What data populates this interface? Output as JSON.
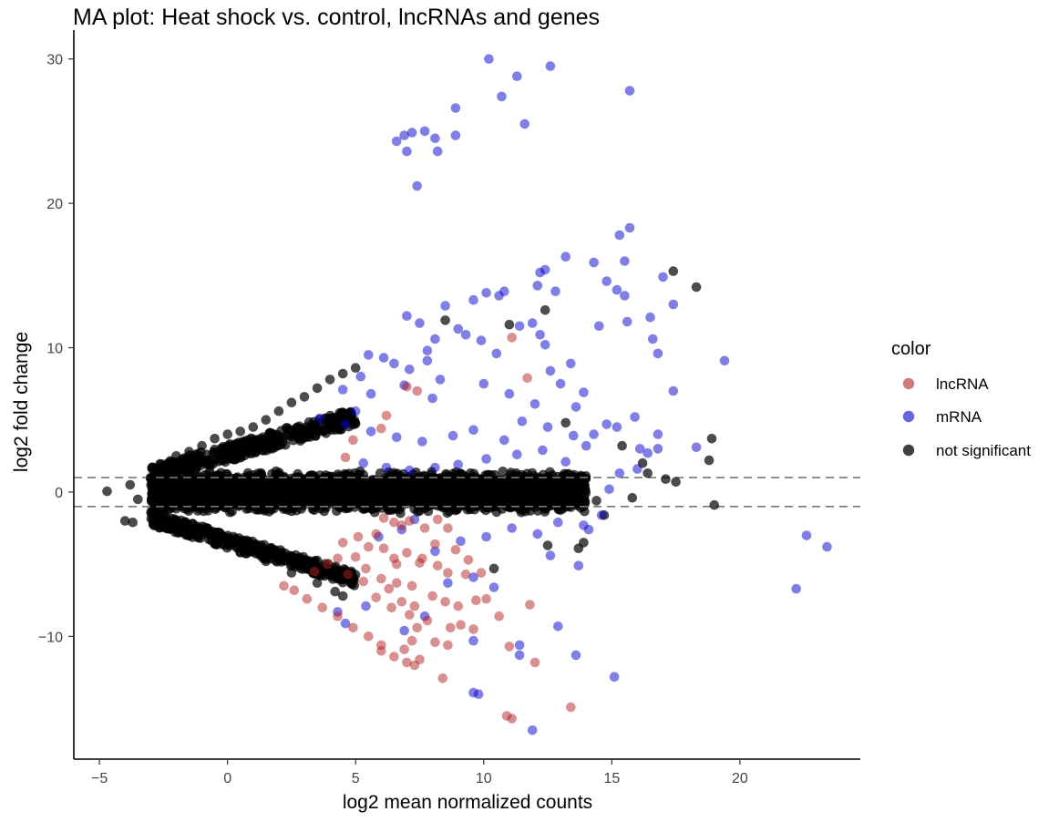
{
  "chart_data": {
    "type": "scatter",
    "title": "MA plot: Heat shock vs. control, lncRNAs and genes",
    "xlabel": "log2 mean normalized counts",
    "ylabel": "log2 fold change",
    "xlim": [
      -6,
      24.7
    ],
    "ylim": [
      -18.5,
      32
    ],
    "xticks": [
      -5,
      0,
      5,
      10,
      15,
      20
    ],
    "yticks": [
      -10,
      0,
      10,
      20,
      30
    ],
    "xtick_labels": [
      "−5",
      "0",
      "5",
      "10",
      "15",
      "20"
    ],
    "ytick_labels": [
      "−10",
      "0",
      "10",
      "20",
      "30"
    ],
    "grid": false,
    "threshold_lines": [
      1,
      -1
    ],
    "legend": {
      "title": "color",
      "position": "right",
      "entries": [
        {
          "label": "lncRNA",
          "color": "#b22222"
        },
        {
          "label": "mRNA",
          "color": "#0000cd"
        },
        {
          "label": "not significant",
          "color": "#000000"
        }
      ]
    },
    "series": [
      {
        "name": "not significant",
        "color": "#000000",
        "points": [
          [
            -4.7,
            0.05
          ],
          [
            -4.0,
            -2.0
          ],
          [
            -3.8,
            0.5
          ],
          [
            -3.7,
            -2.1
          ],
          [
            -3.5,
            -0.5
          ],
          [
            -3.0,
            1.0
          ],
          [
            -2.8,
            1.5
          ],
          [
            -2.5,
            1.8
          ],
          [
            -2.2,
            2.1
          ],
          [
            -2.0,
            2.5
          ],
          [
            -1.5,
            2.8
          ],
          [
            -1.0,
            3.2
          ],
          [
            -0.5,
            3.7
          ],
          [
            0.0,
            4.0
          ],
          [
            0.5,
            4.2
          ],
          [
            1.0,
            4.5
          ],
          [
            1.5,
            5.0
          ],
          [
            2.0,
            5.6
          ],
          [
            2.5,
            6.2
          ],
          [
            3.0,
            6.6
          ],
          [
            3.5,
            7.2
          ],
          [
            4.0,
            7.8
          ],
          [
            4.5,
            8.2
          ],
          [
            5.0,
            8.6
          ],
          [
            -2.5,
            -2.4
          ],
          [
            -1.5,
            -3.0
          ],
          [
            -0.5,
            -3.6
          ],
          [
            0.5,
            -4.2
          ],
          [
            1.5,
            -4.8
          ],
          [
            2.5,
            -5.6
          ],
          [
            3.5,
            -6.3
          ],
          [
            4.5,
            -7.2
          ],
          [
            4.2,
            -6.9
          ],
          [
            11.0,
            11.6
          ],
          [
            12.4,
            12.6
          ],
          [
            8.5,
            11.9
          ],
          [
            17.4,
            15.3
          ],
          [
            18.3,
            14.2
          ],
          [
            16.2,
            2.0
          ],
          [
            16.4,
            1.3
          ],
          [
            17.1,
            0.9
          ],
          [
            17.5,
            0.7
          ],
          [
            18.8,
            2.2
          ],
          [
            18.9,
            3.7
          ],
          [
            19.0,
            -0.9
          ],
          [
            14.7,
            -1.6
          ],
          [
            14.4,
            -0.6
          ],
          [
            15.4,
            3.2
          ],
          [
            13.7,
            -3.9
          ],
          [
            13.9,
            -3.5
          ],
          [
            12.5,
            -3.7
          ],
          [
            10.4,
            -5.3
          ],
          [
            13.2,
            4.8
          ],
          [
            15.8,
            -0.4
          ]
        ]
      },
      {
        "name": "mRNA",
        "color": "#0000cd",
        "points": [
          [
            6.6,
            24.3
          ],
          [
            6.9,
            24.7
          ],
          [
            7.2,
            24.9
          ],
          [
            7.0,
            23.6
          ],
          [
            7.4,
            21.2
          ],
          [
            7.7,
            25.0
          ],
          [
            8.1,
            24.5
          ],
          [
            8.2,
            23.6
          ],
          [
            8.9,
            24.7
          ],
          [
            8.9,
            26.6
          ],
          [
            10.2,
            30.0
          ],
          [
            10.7,
            27.4
          ],
          [
            11.3,
            28.8
          ],
          [
            11.6,
            25.5
          ],
          [
            12.6,
            29.5
          ],
          [
            15.7,
            27.8
          ],
          [
            15.3,
            17.8
          ],
          [
            15.7,
            18.3
          ],
          [
            15.5,
            16.0
          ],
          [
            14.3,
            15.9
          ],
          [
            12.2,
            15.2
          ],
          [
            12.4,
            15.4
          ],
          [
            13.2,
            16.3
          ],
          [
            14.8,
            14.6
          ],
          [
            15.2,
            14.0
          ],
          [
            15.5,
            13.6
          ],
          [
            16.5,
            12.1
          ],
          [
            17.0,
            14.9
          ],
          [
            17.4,
            13.0
          ],
          [
            16.6,
            10.6
          ],
          [
            16.8,
            9.6
          ],
          [
            15.6,
            11.8
          ],
          [
            14.5,
            11.5
          ],
          [
            17.4,
            7.0
          ],
          [
            19.4,
            9.1
          ],
          [
            18.3,
            3.1
          ],
          [
            12.1,
            14.3
          ],
          [
            12.8,
            13.9
          ],
          [
            10.8,
            13.9
          ],
          [
            10.1,
            13.8
          ],
          [
            9.6,
            13.3
          ],
          [
            10.6,
            13.6
          ],
          [
            11.4,
            11.5
          ],
          [
            11.9,
            11.7
          ],
          [
            12.2,
            10.9
          ],
          [
            12.4,
            10.2
          ],
          [
            12.6,
            8.4
          ],
          [
            13.0,
            7.5
          ],
          [
            13.4,
            8.9
          ],
          [
            13.6,
            5.9
          ],
          [
            13.9,
            6.9
          ],
          [
            14.3,
            4.0
          ],
          [
            14.8,
            4.7
          ],
          [
            15.2,
            4.5
          ],
          [
            16.1,
            3.0
          ],
          [
            16.4,
            2.7
          ],
          [
            15.9,
            5.2
          ],
          [
            16.8,
            4.0
          ],
          [
            16.8,
            3.0
          ],
          [
            22.6,
            -3.0
          ],
          [
            23.4,
            -3.8
          ],
          [
            22.2,
            -6.7
          ],
          [
            15.1,
            -12.8
          ],
          [
            13.6,
            -11.3
          ],
          [
            11.9,
            -16.5
          ],
          [
            9.8,
            -14.0
          ],
          [
            9.6,
            -13.9
          ],
          [
            11.4,
            -10.6
          ],
          [
            11.4,
            -11.3
          ],
          [
            12.9,
            -9.3
          ],
          [
            10.4,
            -6.6
          ],
          [
            9.6,
            -10.3
          ],
          [
            13.7,
            -5.1
          ],
          [
            7.0,
            12.2
          ],
          [
            7.5,
            11.7
          ],
          [
            8.5,
            12.9
          ],
          [
            9.0,
            11.3
          ],
          [
            9.3,
            10.9
          ],
          [
            7.8,
            9.8
          ],
          [
            6.5,
            8.9
          ],
          [
            8.1,
            10.6
          ],
          [
            9.9,
            10.5
          ],
          [
            5.5,
            9.5
          ],
          [
            6.1,
            9.3
          ],
          [
            7.1,
            8.5
          ],
          [
            8.3,
            7.8
          ],
          [
            5.6,
            6.8
          ],
          [
            5.2,
            8.0
          ],
          [
            7.8,
            9.1
          ],
          [
            4.5,
            7.1
          ],
          [
            6.9,
            7.4
          ],
          [
            10.5,
            9.6
          ],
          [
            5.0,
            5.6
          ],
          [
            8.0,
            6.5
          ],
          [
            10.0,
            7.5
          ],
          [
            11.0,
            6.8
          ],
          [
            12.0,
            6.1
          ],
          [
            11.5,
            4.9
          ],
          [
            12.5,
            4.5
          ],
          [
            13.5,
            3.9
          ],
          [
            14.0,
            3.2
          ],
          [
            10.8,
            3.6
          ],
          [
            9.6,
            4.3
          ],
          [
            8.8,
            3.9
          ],
          [
            7.6,
            3.5
          ],
          [
            6.6,
            3.8
          ],
          [
            5.6,
            4.2
          ],
          [
            4.6,
            4.7
          ],
          [
            3.6,
            5.1
          ],
          [
            13.2,
            2.1
          ],
          [
            12.3,
            2.9
          ],
          [
            11.3,
            2.6
          ],
          [
            10.1,
            2.3
          ],
          [
            9.0,
            1.9
          ],
          [
            8.1,
            1.7
          ],
          [
            7.1,
            1.5
          ],
          [
            6.2,
            1.7
          ],
          [
            5.3,
            2.0
          ],
          [
            14.6,
            -1.6
          ],
          [
            13.9,
            -2.3
          ],
          [
            12.9,
            -2.1
          ],
          [
            12.1,
            -2.9
          ],
          [
            11.1,
            -2.5
          ],
          [
            10.1,
            -3.1
          ],
          [
            9.1,
            -3.4
          ],
          [
            8.1,
            -4.1
          ],
          [
            9.6,
            -5.9
          ],
          [
            8.6,
            -6.3
          ],
          [
            7.7,
            -8.6
          ],
          [
            6.9,
            -9.6
          ],
          [
            5.4,
            -7.9
          ],
          [
            4.6,
            -9.1
          ],
          [
            4.3,
            -8.3
          ],
          [
            5.9,
            -3.1
          ],
          [
            6.8,
            -2.6
          ],
          [
            7.3,
            -1.9
          ],
          [
            12.6,
            -4.4
          ],
          [
            14.1,
            -2.6
          ],
          [
            14.9,
            0.2
          ],
          [
            15.3,
            1.3
          ],
          [
            16.0,
            1.6
          ]
        ]
      },
      {
        "name": "lncRNA",
        "color": "#b22222",
        "points": [
          [
            11.1,
            10.7
          ],
          [
            11.7,
            7.9
          ],
          [
            7.0,
            7.3
          ],
          [
            7.4,
            7.0
          ],
          [
            6.0,
            4.4
          ],
          [
            4.9,
            3.6
          ],
          [
            4.6,
            2.4
          ],
          [
            6.2,
            5.3
          ],
          [
            6.5,
            -2.1
          ],
          [
            6.1,
            -1.8
          ],
          [
            6.8,
            -2.3
          ],
          [
            7.1,
            -2.0
          ],
          [
            8.2,
            -1.9
          ],
          [
            7.7,
            -2.5
          ],
          [
            8.6,
            -2.5
          ],
          [
            4.5,
            -3.5
          ],
          [
            5.1,
            -3.1
          ],
          [
            5.5,
            -3.8
          ],
          [
            5.0,
            -4.5
          ],
          [
            6.1,
            -3.9
          ],
          [
            6.5,
            -4.6
          ],
          [
            7.0,
            -4.2
          ],
          [
            7.5,
            -4.9
          ],
          [
            8.2,
            -5.1
          ],
          [
            8.6,
            -5.6
          ],
          [
            9.3,
            -5.7
          ],
          [
            9.9,
            -5.6
          ],
          [
            5.4,
            -5.3
          ],
          [
            6.0,
            -6.0
          ],
          [
            6.6,
            -6.3
          ],
          [
            7.2,
            -6.5
          ],
          [
            8.0,
            -7.2
          ],
          [
            8.5,
            -7.6
          ],
          [
            9.0,
            -7.9
          ],
          [
            9.7,
            -7.5
          ],
          [
            10.1,
            -7.4
          ],
          [
            5.8,
            -7.3
          ],
          [
            6.4,
            -8.0
          ],
          [
            7.1,
            -8.5
          ],
          [
            7.4,
            -9.4
          ],
          [
            7.8,
            -8.9
          ],
          [
            8.7,
            -9.4
          ],
          [
            9.1,
            -9.2
          ],
          [
            9.6,
            -9.5
          ],
          [
            7.2,
            -10.3
          ],
          [
            6.9,
            -10.9
          ],
          [
            7.5,
            -11.6
          ],
          [
            8.1,
            -10.4
          ],
          [
            8.6,
            -10.6
          ],
          [
            6.0,
            -10.6
          ],
          [
            5.5,
            -10.0
          ],
          [
            4.9,
            -9.4
          ],
          [
            4.3,
            -8.6
          ],
          [
            3.7,
            -8.0
          ],
          [
            3.1,
            -7.4
          ],
          [
            2.6,
            -6.8
          ],
          [
            2.2,
            -6.5
          ],
          [
            3.4,
            -5.5
          ],
          [
            3.9,
            -5.0
          ],
          [
            4.3,
            -4.6
          ],
          [
            6.6,
            -5.0
          ],
          [
            7.6,
            -4.6
          ],
          [
            8.1,
            -3.6
          ],
          [
            5.8,
            -2.9
          ],
          [
            10.6,
            -8.6
          ],
          [
            12.0,
            -11.8
          ],
          [
            11.0,
            -10.7
          ],
          [
            8.4,
            -12.9
          ],
          [
            10.9,
            -15.5
          ],
          [
            11.1,
            -15.7
          ],
          [
            13.4,
            -14.9
          ],
          [
            11.8,
            -7.8
          ],
          [
            9.4,
            -4.7
          ],
          [
            8.9,
            -4.0
          ],
          [
            6.3,
            -6.7
          ],
          [
            6.8,
            -7.6
          ],
          [
            7.3,
            -7.9
          ],
          [
            5.3,
            -6.2
          ],
          [
            4.7,
            -5.7
          ],
          [
            7.3,
            -12.0
          ],
          [
            7.0,
            -11.8
          ],
          [
            6.5,
            -11.4
          ],
          [
            6.0,
            -11.0
          ]
        ]
      }
    ]
  }
}
